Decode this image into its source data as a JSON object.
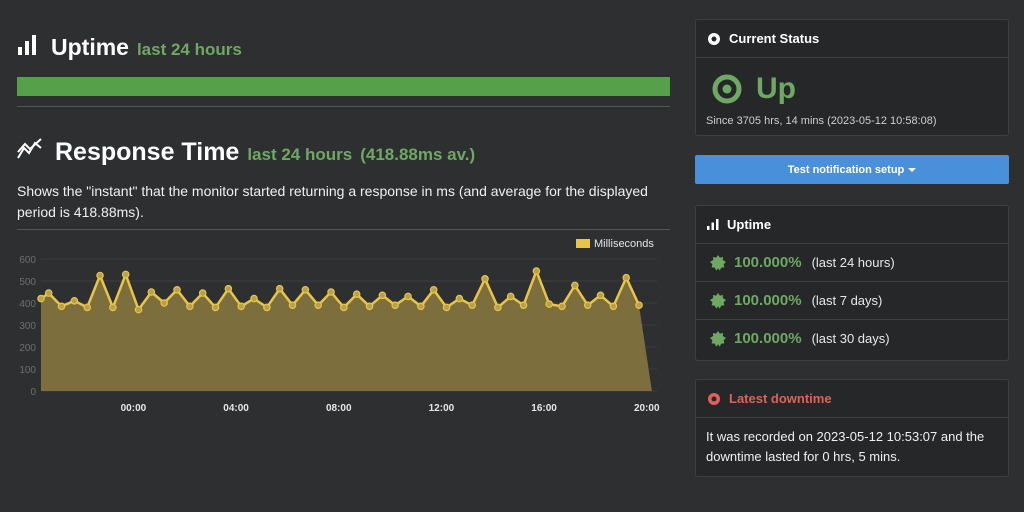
{
  "uptime_section": {
    "title": "Uptime",
    "subtitle": "last 24 hours",
    "bar_color": "#57a04b"
  },
  "response_section": {
    "title": "Response Time",
    "subtitle": "last 24 hours",
    "average": "(418.88ms av.)",
    "description": "Shows the \"instant\" that the monitor started returning a response in ms (and average for the displayed period is 418.88ms)."
  },
  "chart_data": {
    "type": "area",
    "legend": "Milliseconds",
    "legend_position": "top-right",
    "ylim": [
      0,
      600
    ],
    "y_ticks": [
      "0",
      "100",
      "200",
      "300",
      "400",
      "500",
      "600"
    ],
    "x_tick_labels": [
      "00:00",
      "04:00",
      "08:00",
      "12:00",
      "16:00",
      "20:00"
    ],
    "x_tick_hours": [
      3,
      7,
      11,
      15,
      19,
      23
    ],
    "x_range_hours": [
      -0.6,
      23.4
    ],
    "grid": true,
    "line_color": "#e8c547",
    "fill_color": "#7d6e3d",
    "x_hours": [
      -0.6,
      -0.3,
      0.2,
      0.7,
      1.2,
      1.7,
      2.2,
      2.7,
      3.2,
      3.7,
      4.2,
      4.7,
      5.2,
      5.7,
      6.2,
      6.7,
      7.2,
      7.7,
      8.2,
      8.7,
      9.2,
      9.7,
      10.2,
      10.7,
      11.2,
      11.7,
      12.2,
      12.7,
      13.2,
      13.7,
      14.2,
      14.7,
      15.2,
      15.7,
      16.2,
      16.7,
      17.2,
      17.7,
      18.2,
      18.7,
      19.2,
      19.7,
      20.2,
      20.7,
      21.2,
      21.7,
      22.2,
      22.7,
      23.2
    ],
    "values": [
      420,
      445,
      385,
      410,
      380,
      525,
      380,
      530,
      370,
      450,
      400,
      460,
      385,
      445,
      380,
      465,
      385,
      420,
      380,
      465,
      390,
      460,
      390,
      450,
      380,
      440,
      385,
      435,
      390,
      430,
      385,
      460,
      380,
      420,
      390,
      510,
      380,
      430,
      390,
      545,
      395,
      385,
      480,
      390,
      435,
      385,
      515,
      390,
      0
    ]
  },
  "status_panel": {
    "title": "Current Status",
    "status": "Up",
    "since": "Since 3705 hrs, 14 mins (2023-05-12 10:58:08)",
    "status_color": "#6ea863"
  },
  "test_button": {
    "label": "Test notification setup",
    "color": "#4a8fd9"
  },
  "uptime_panel": {
    "title": "Uptime",
    "rows": [
      {
        "percent": "100.000%",
        "period": "(last 24 hours)"
      },
      {
        "percent": "100.000%",
        "period": "(last 7 days)"
      },
      {
        "percent": "100.000%",
        "period": "(last 30 days)"
      }
    ]
  },
  "downtime_panel": {
    "title": "Latest downtime",
    "text": "It was recorded on 2023-05-12 10:53:07 and the downtime lasted for 0 hrs, 5 mins.",
    "color": "#e0605a"
  }
}
